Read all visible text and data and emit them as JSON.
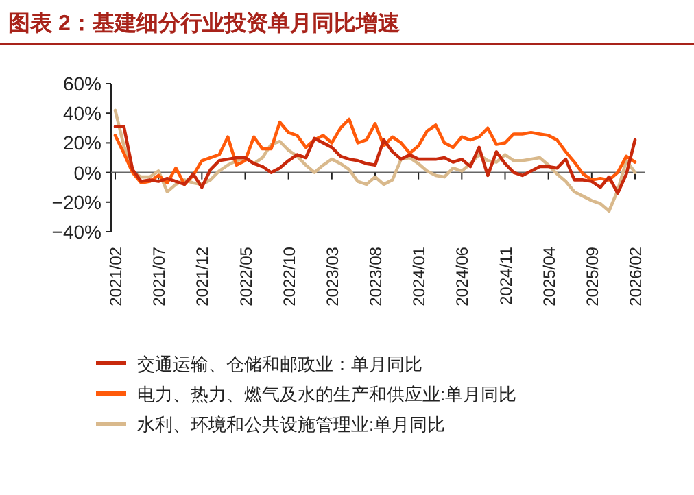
{
  "chart_data": {
    "type": "line",
    "title": "图表 2：基建细分行业投资单月同比增速",
    "categories": [
      "2021/02",
      null,
      null,
      null,
      null,
      "2021/07",
      null,
      null,
      null,
      null,
      "2021/12",
      null,
      null,
      null,
      null,
      "2022/05",
      null,
      null,
      null,
      null,
      "2022/10",
      null,
      null,
      null,
      null,
      "2023/03",
      null,
      null,
      null,
      null,
      "2023/08",
      null,
      null,
      null,
      null,
      "2024/01",
      null,
      null,
      null,
      null,
      "2024/06",
      null,
      null,
      null,
      null,
      "2024/11",
      null,
      null,
      null,
      null,
      "2025/04",
      null,
      null,
      null,
      null,
      "2025/09",
      null,
      null,
      null,
      null,
      "2026/02"
    ],
    "series": [
      {
        "name": "交通运输、仓储和邮政业：单月同比",
        "color": "#c8290c",
        "values": [
          31,
          31,
          2,
          -6,
          -5,
          -6,
          -4,
          -6,
          -8,
          -1,
          -10,
          2,
          8,
          9,
          10,
          10,
          6,
          4,
          0,
          3,
          8,
          12,
          10,
          23,
          20,
          17,
          11,
          9,
          8,
          6,
          5,
          22,
          14,
          9,
          12,
          9,
          9,
          9,
          10,
          7,
          9,
          4,
          17,
          -2,
          14,
          6,
          0,
          -2,
          1,
          4,
          4,
          3,
          9,
          -5,
          -5,
          -6,
          -10,
          -3,
          -14,
          -1,
          22
        ]
      },
      {
        "name": "电力、热力、燃气及水的生产和供应业:单月同比",
        "color": "#ff5a0a",
        "values": [
          25,
          13,
          0,
          -7,
          -6,
          -2,
          -7,
          3,
          -8,
          -2,
          8,
          10,
          12,
          24,
          5,
          8,
          24,
          16,
          16,
          34,
          27,
          25,
          17,
          22,
          25,
          20,
          30,
          36,
          20,
          22,
          33,
          18,
          24,
          20,
          13,
          18,
          28,
          32,
          20,
          17,
          24,
          22,
          24,
          30,
          19,
          20,
          26,
          26,
          27,
          26,
          25,
          22,
          14,
          7,
          -1,
          -5,
          -4,
          -5,
          0,
          11,
          7
        ]
      },
      {
        "name": "水利、环境和公共设施管理业:单月同比",
        "color": "#d9b98c",
        "values": [
          42,
          18,
          0,
          -3,
          -3,
          1,
          -13,
          -8,
          -5,
          -7,
          -8,
          -5,
          1,
          5,
          8,
          10,
          6,
          10,
          19,
          21,
          15,
          11,
          5,
          0,
          5,
          9,
          6,
          2,
          -6,
          -8,
          -3,
          -8,
          -5,
          9,
          10,
          6,
          1,
          -2,
          -3,
          3,
          1,
          6,
          12,
          8,
          7,
          12,
          8,
          8,
          9,
          10,
          5,
          -1,
          -6,
          -13,
          -16,
          -19,
          -21,
          -26,
          -12,
          8,
          0
        ]
      }
    ],
    "ylim": [
      -40,
      60
    ],
    "yticks": [
      {
        "value": 60,
        "label": "60%"
      },
      {
        "value": 40,
        "label": "40%"
      },
      {
        "value": 20,
        "label": "20%"
      },
      {
        "value": 0,
        "label": "0%"
      },
      {
        "value": -20,
        "label": "−20%"
      },
      {
        "value": -40,
        "label": "−40%"
      }
    ],
    "legend": "bottom"
  }
}
